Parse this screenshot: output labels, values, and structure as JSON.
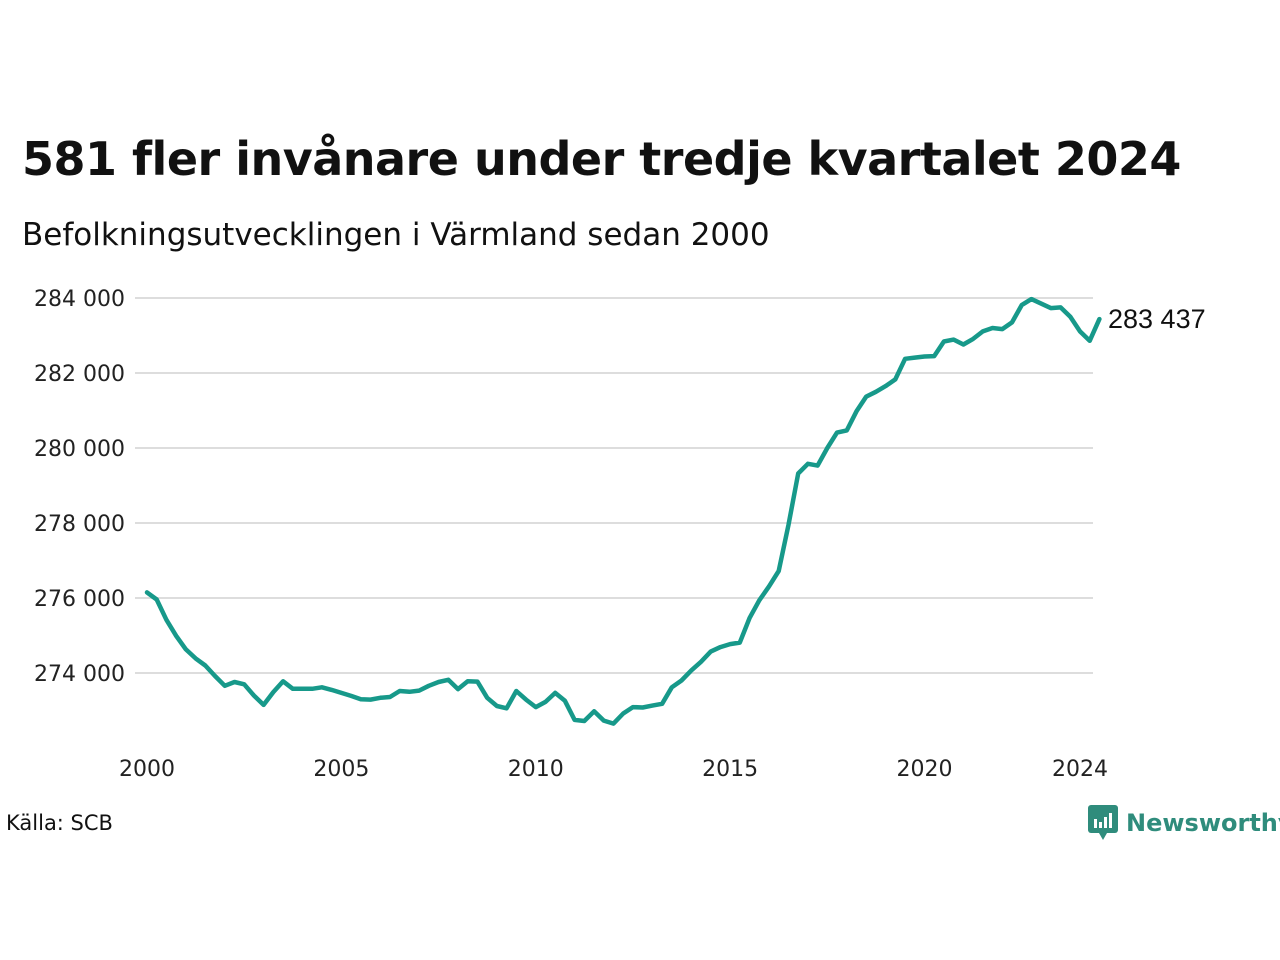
{
  "header": {
    "title": "581 fler invånare under tredje kvartalet 2024",
    "subtitle": "Befolkningsutvecklingen i Värmland sedan 2000"
  },
  "footer": {
    "source": "Källa: SCB",
    "brand": "Newsworthy"
  },
  "colors": {
    "line": "#17998a",
    "grid": "#dddddd",
    "brand": "#2f8c7c"
  },
  "chart_data": {
    "type": "line",
    "title": "581 fler invånare under tredje kvartalet 2024",
    "subtitle": "Befolkningsutvecklingen i Värmland sedan 2000",
    "xlabel": "",
    "ylabel": "",
    "grid": true,
    "legend": "none",
    "end_label": "283 437",
    "x_ticks": [
      2000,
      2005,
      2010,
      2015,
      2020,
      2024
    ],
    "x_tick_labels": [
      "2000",
      "2005",
      "2010",
      "2015",
      "2020",
      "2024"
    ],
    "y_ticks": [
      274000,
      276000,
      278000,
      280000,
      282000,
      284000
    ],
    "y_tick_labels": [
      "274 000",
      "276 000",
      "278 000",
      "280 000",
      "282 000",
      "284 000"
    ],
    "xlim": [
      2000,
      2024.5
    ],
    "ylim": [
      272500,
      284300
    ],
    "series": [
      {
        "x": [
          2000.0,
          2000.25,
          2000.5,
          2000.75,
          2001.0,
          2001.25,
          2001.5,
          2001.75,
          2002.0,
          2002.25,
          2002.5,
          2002.75,
          2003.0,
          2003.25,
          2003.5,
          2003.75,
          2004.0,
          2004.25,
          2004.5,
          2004.75,
          2005.0,
          2005.25,
          2005.5,
          2005.75,
          2006.0,
          2006.25,
          2006.5,
          2006.75,
          2007.0,
          2007.25,
          2007.5,
          2007.75,
          2008.0,
          2008.25,
          2008.5,
          2008.75,
          2009.0,
          2009.25,
          2009.5,
          2009.75,
          2010.0,
          2010.25,
          2010.5,
          2010.75,
          2011.0,
          2011.25,
          2011.5,
          2011.75,
          2012.0,
          2012.25,
          2012.5,
          2012.75,
          2013.0,
          2013.25,
          2013.5,
          2013.75,
          2014.0,
          2014.25,
          2014.5,
          2014.75,
          2015.0,
          2015.25,
          2015.5,
          2015.75,
          2016.0,
          2016.25,
          2016.5,
          2016.75,
          2017.0,
          2017.25,
          2017.5,
          2017.75,
          2018.0,
          2018.25,
          2018.5,
          2018.75,
          2019.0,
          2019.25,
          2019.5,
          2019.75,
          2020.0,
          2020.25,
          2020.5,
          2020.75,
          2021.0,
          2021.25,
          2021.5,
          2021.75,
          2022.0,
          2022.25,
          2022.5,
          2022.75,
          2023.0,
          2023.25,
          2023.5,
          2023.75,
          2024.0,
          2024.25,
          2024.5
        ],
        "values": [
          276150,
          275960,
          275420,
          274990,
          274630,
          274390,
          274200,
          273920,
          273660,
          273760,
          273700,
          273400,
          273150,
          273490,
          273780,
          273580,
          273580,
          273580,
          273620,
          273550,
          273470,
          273390,
          273300,
          273290,
          273340,
          273360,
          273520,
          273500,
          273530,
          273660,
          273760,
          273820,
          273570,
          273780,
          273770,
          273340,
          273120,
          273060,
          273520,
          273290,
          273090,
          273230,
          273470,
          273260,
          272750,
          272720,
          272980,
          272730,
          272650,
          272920,
          273090,
          273080,
          273130,
          273180,
          273620,
          273800,
          274070,
          274300,
          274570,
          274690,
          274770,
          274810,
          275470,
          275940,
          276310,
          276720,
          277940,
          279320,
          279580,
          279530,
          280000,
          280410,
          280470,
          280980,
          281370,
          281500,
          281650,
          281830,
          282380,
          282410,
          282440,
          282450,
          282840,
          282890,
          282760,
          282910,
          283110,
          283200,
          283170,
          283350,
          283810,
          283970,
          283850,
          283730,
          283750,
          283500,
          283110,
          282860,
          283437
        ]
      }
    ]
  }
}
